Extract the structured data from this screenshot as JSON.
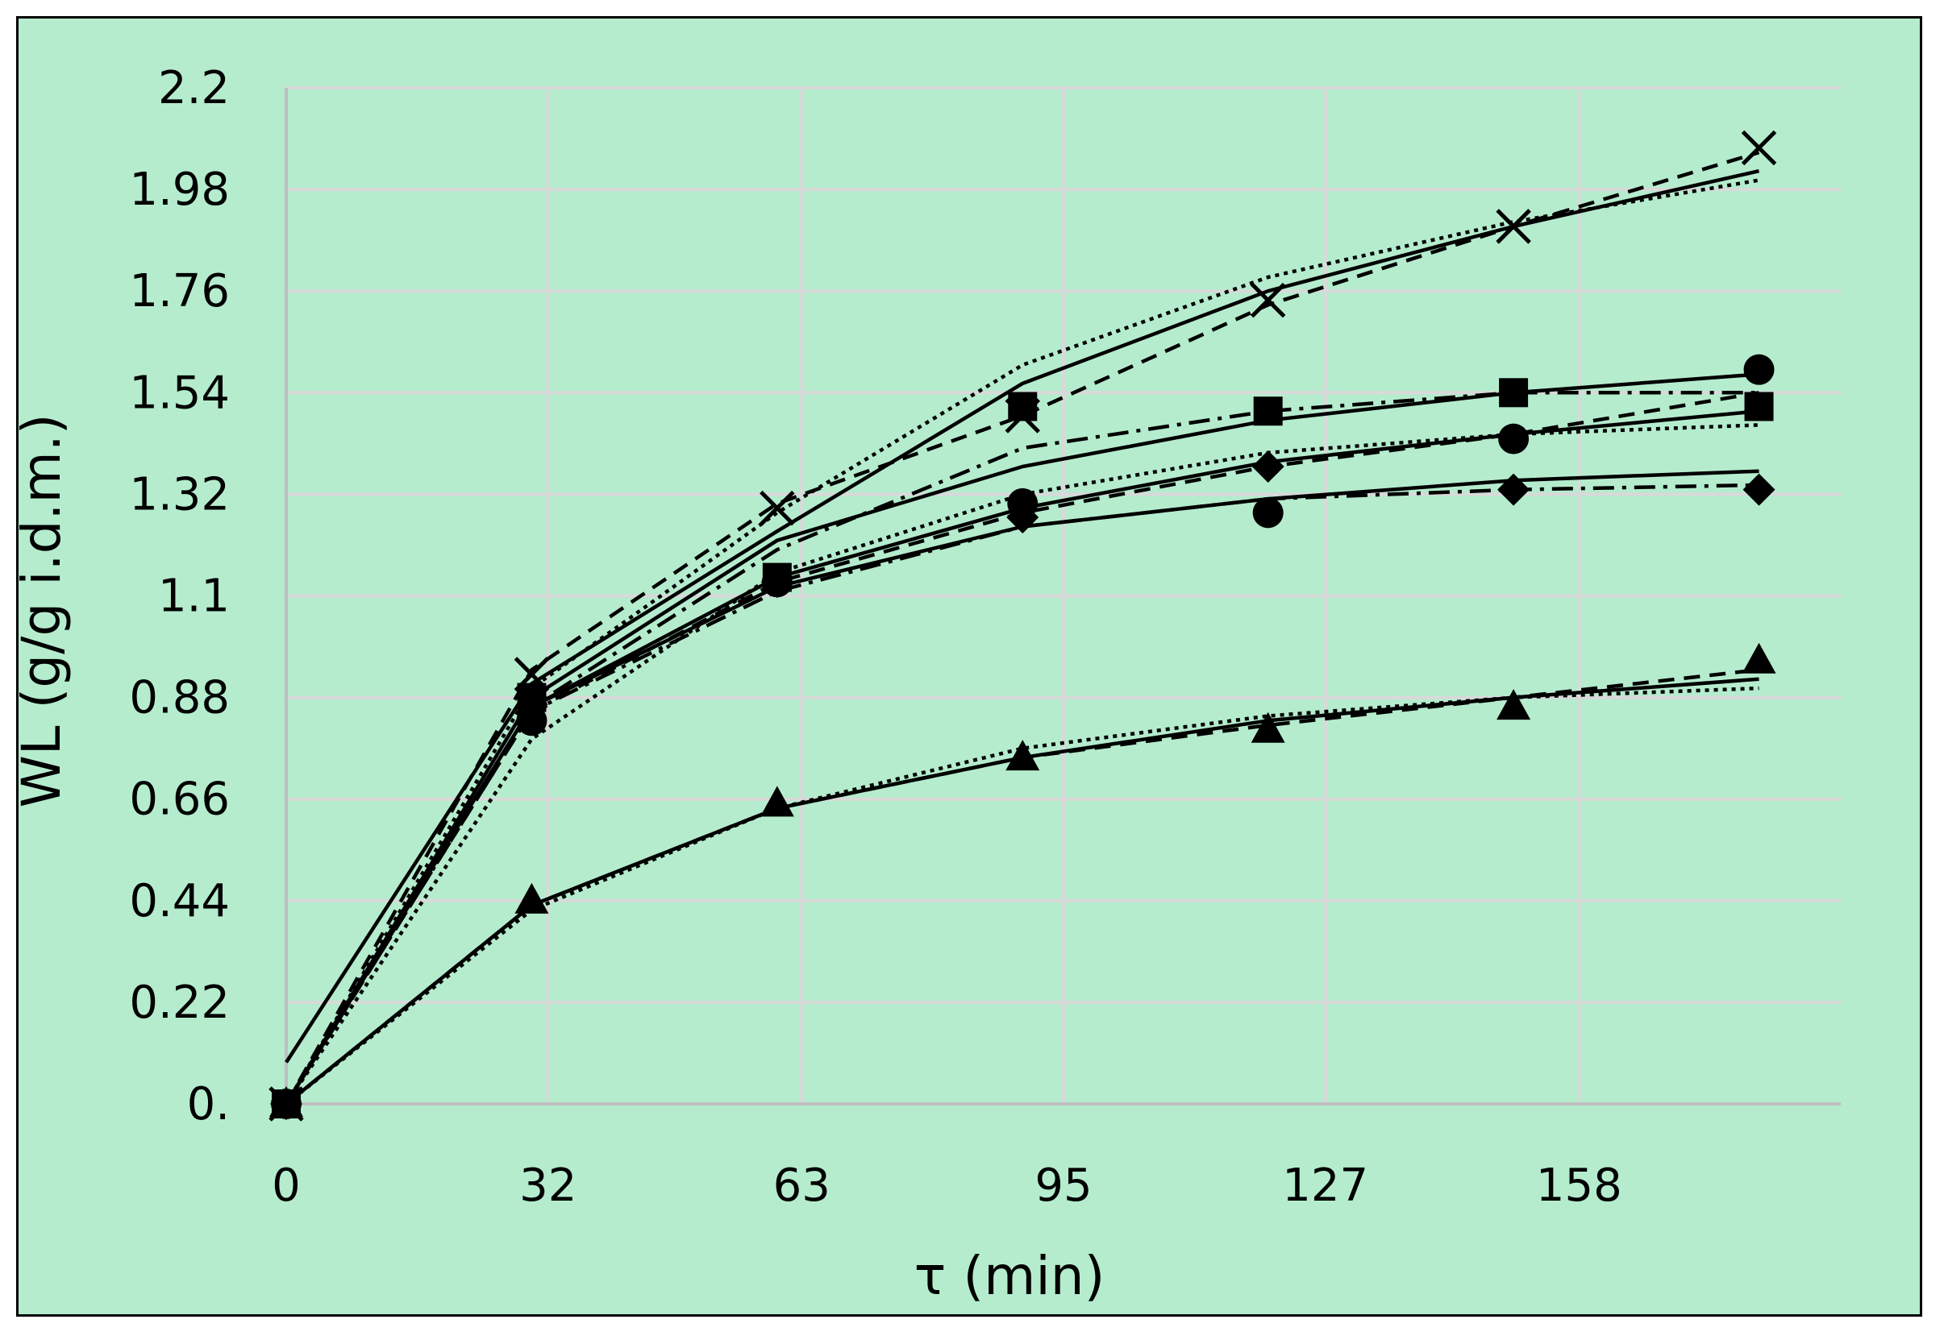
{
  "chart_data": {
    "type": "line",
    "title": "",
    "xlabel": "τ (min)",
    "ylabel": "WL (g/g i.d.m.)",
    "xlim": [
      0,
      190
    ],
    "ylim": [
      0,
      2.2
    ],
    "x_ticks": [
      0,
      32,
      63,
      95,
      127,
      158
    ],
    "x_tick_labels": [
      "0",
      "32",
      "63",
      "95",
      "127",
      "158"
    ],
    "y_ticks": [
      0,
      0.22,
      0.44,
      0.66,
      0.88,
      1.1,
      1.32,
      1.54,
      1.76,
      1.98,
      2.2
    ],
    "y_tick_labels": [
      "0.",
      "0.22",
      "0.44",
      "0.66",
      "0.88",
      "1.1",
      "1.32",
      "1.54",
      "1.76",
      "1.98",
      "2.2"
    ],
    "grid": true,
    "colors": {
      "background": "#b5ecce",
      "grid": "#d9d9d9",
      "axis": "#bfbfbf",
      "ink": "#000000"
    },
    "series": [
      {
        "marker": "cross",
        "x": [
          0,
          30,
          60,
          90,
          120,
          150,
          180
        ],
        "y": [
          0,
          0.93,
          1.29,
          1.49,
          1.74,
          1.9,
          2.07
        ],
        "fits": [
          {
            "style": "solid",
            "x": [
              0,
              30,
              60,
              90,
              120,
              150,
              180
            ],
            "y": [
              0.09,
              0.91,
              1.24,
              1.56,
              1.76,
              1.9,
              2.02
            ]
          },
          {
            "style": "dotted",
            "x": [
              0,
              30,
              60,
              90,
              120,
              150,
              180
            ],
            "y": [
              0,
              0.9,
              1.28,
              1.6,
              1.79,
              1.91,
              2.0
            ]
          },
          {
            "style": "dashed",
            "x": [
              0,
              30,
              60,
              90,
              120,
              150,
              180
            ],
            "y": [
              0,
              0.94,
              1.3,
              1.49,
              1.73,
              1.9,
              2.06
            ]
          }
        ]
      },
      {
        "marker": "square",
        "x": [
          0,
          30,
          60,
          90,
          120,
          150,
          180
        ],
        "y": [
          0,
          0.88,
          1.14,
          1.51,
          1.5,
          1.54,
          1.51
        ],
        "fits": [
          {
            "style": "solid",
            "x": [
              0,
              30,
              60,
              90,
              120,
              150,
              180
            ],
            "y": [
              0,
              0.88,
              1.22,
              1.38,
              1.48,
              1.54,
              1.58
            ]
          },
          {
            "style": "dashdot",
            "x": [
              0,
              30,
              60,
              90,
              120,
              150,
              180
            ],
            "y": [
              0,
              0.86,
              1.2,
              1.42,
              1.5,
              1.54,
              1.54
            ]
          }
        ]
      },
      {
        "marker": "circle",
        "x": [
          0,
          30,
          60,
          90,
          120,
          150,
          180
        ],
        "y": [
          0,
          0.83,
          1.13,
          1.3,
          1.28,
          1.44,
          1.59
        ],
        "fits": [
          {
            "style": "solid",
            "x": [
              0,
              30,
              60,
              90,
              120,
              150,
              180
            ],
            "y": [
              0,
              0.86,
              1.14,
              1.29,
              1.39,
              1.45,
              1.5
            ]
          },
          {
            "style": "dotted",
            "x": [
              0,
              30,
              60,
              90,
              120,
              150,
              180
            ],
            "y": [
              0,
              0.79,
              1.15,
              1.32,
              1.41,
              1.45,
              1.47
            ]
          },
          {
            "style": "dashed",
            "x": [
              0,
              30,
              60,
              90,
              120,
              150,
              180
            ],
            "y": [
              0,
              0.85,
              1.13,
              1.28,
              1.38,
              1.45,
              1.54
            ]
          }
        ]
      },
      {
        "marker": "diamond",
        "x": [
          0,
          30,
          60,
          90,
          120,
          150,
          180
        ],
        "y": [
          0,
          0.86,
          1.13,
          1.27,
          1.38,
          1.33,
          1.33
        ],
        "fits": [
          {
            "style": "solid",
            "x": [
              0,
              30,
              60,
              90,
              120,
              150,
              180
            ],
            "y": [
              0,
              0.86,
              1.12,
              1.25,
              1.31,
              1.35,
              1.37
            ]
          },
          {
            "style": "dashdot",
            "x": [
              0,
              30,
              60,
              90,
              120,
              150,
              180
            ],
            "y": [
              0,
              0.85,
              1.11,
              1.25,
              1.31,
              1.33,
              1.34
            ]
          }
        ]
      },
      {
        "marker": "triangle",
        "x": [
          0,
          30,
          60,
          90,
          120,
          150,
          180
        ],
        "y": [
          0,
          0.44,
          0.65,
          0.75,
          0.81,
          0.86,
          0.96
        ],
        "fits": [
          {
            "style": "solid",
            "x": [
              0,
              30,
              60,
              90,
              120,
              150,
              180
            ],
            "y": [
              0,
              0.43,
              0.64,
              0.75,
              0.83,
              0.88,
              0.92
            ]
          },
          {
            "style": "dotted",
            "x": [
              0,
              30,
              60,
              90,
              120,
              150,
              180
            ],
            "y": [
              0,
              0.42,
              0.64,
              0.77,
              0.84,
              0.88,
              0.9
            ]
          },
          {
            "style": "dashed",
            "x": [
              0,
              30,
              60,
              90,
              120,
              150,
              180
            ],
            "y": [
              0,
              0.43,
              0.64,
              0.75,
              0.82,
              0.88,
              0.94
            ]
          }
        ]
      }
    ]
  }
}
